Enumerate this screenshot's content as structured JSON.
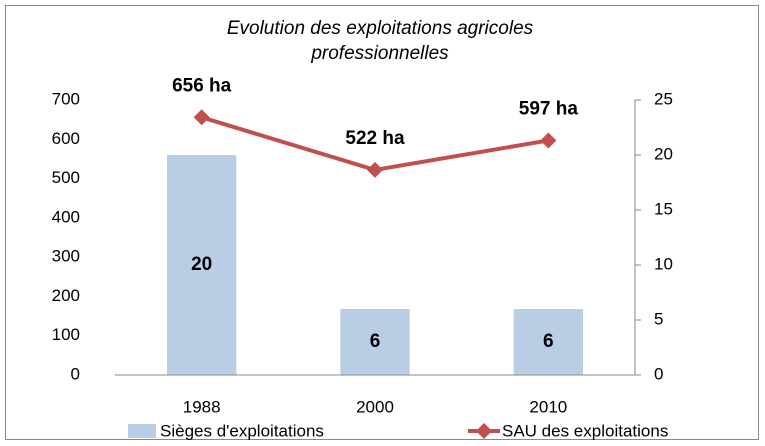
{
  "chart_data": {
    "type": "combo",
    "title": "Evolution des exploitations agricoles professionnelles",
    "categories": [
      "1988",
      "2000",
      "2010"
    ],
    "series": [
      {
        "name": "Sièges d'exploitations",
        "type": "bar",
        "axis": "y2",
        "color": "#b9cde5",
        "values": [
          20,
          6,
          6
        ]
      },
      {
        "name": "SAU des exploitations",
        "type": "line",
        "color": "#c0504d",
        "values": [
          656,
          522,
          597
        ],
        "value_labels": [
          "656 ha",
          "522 ha",
          "597 ha"
        ]
      }
    ],
    "ylim": [
      0,
      700
    ],
    "yticks": [
      0,
      100,
      200,
      300,
      400,
      500,
      600,
      700
    ],
    "y2lim": [
      0,
      25
    ],
    "y2ticks": [
      0,
      5,
      10,
      15,
      20,
      25
    ],
    "grid": false,
    "legend": "bottom"
  }
}
